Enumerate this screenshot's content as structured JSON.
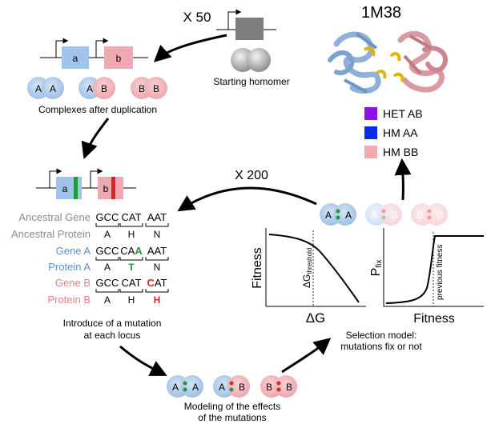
{
  "colors": {
    "blue": "#a9c8ea",
    "blue_edge": "#8fb3de",
    "pink": "#f0b2b8",
    "pink_edge": "#e39aa2",
    "green": "#1f9a3a",
    "red": "#d9262b",
    "gray_gene": "#7a7a7a",
    "text_gray": "#8b8b8b",
    "text_blue": "#5b8fd1",
    "text_pink": "#e37f8c",
    "legend_het": "#8a12e6",
    "legend_hm_aa": "#0a2ee8",
    "legend_hm_bb": "#f2aab0"
  },
  "labels": {
    "x50": "X 50",
    "x200": "X 200",
    "pdb": "1M38",
    "starting": "Starting homomer",
    "complexes": "Complexes after duplication",
    "intro1": "Introduce of a mutation",
    "intro2": "at each locus",
    "model1": "Modeling of the effects",
    "model2": "of the mutations",
    "sel1": "Selection model:",
    "sel2": "mutations fix or not"
  },
  "genes": {
    "a": "a",
    "b": "b"
  },
  "subunits": {
    "A": "A",
    "B": "B"
  },
  "legend": [
    {
      "label": "HET AB",
      "color": "#8a12e6"
    },
    {
      "label": "HM AA",
      "color": "#0a2ee8"
    },
    {
      "label": "HM BB",
      "color": "#f2aab0"
    }
  ],
  "sequence_table": {
    "rows": [
      {
        "label": "Ancestral Gene",
        "cells": [
          "GCC",
          "CAT",
          "AAT"
        ]
      },
      {
        "label": "Ancestral Protein",
        "cells": [
          "A",
          "H",
          "N"
        ]
      },
      {
        "label": "Gene A",
        "cells": [
          "GCC",
          "CA",
          "AAT"
        ],
        "mut": "A"
      },
      {
        "label": "Protein A",
        "cells": [
          "A",
          "T",
          "N"
        ]
      },
      {
        "label": "Gene B",
        "cells": [
          "GCC",
          "CAT",
          "AT"
        ],
        "mut": "C"
      },
      {
        "label": "Protein B",
        "cells": [
          "A",
          "H",
          "H"
        ]
      }
    ]
  },
  "plot1": {
    "ylabel": "Fitness",
    "xlabel": "ΔG",
    "threshold_main": "ΔG",
    "threshold_sub": "threshold"
  },
  "plot2": {
    "ylabel_main": "P",
    "ylabel_sub": "fix",
    "xlabel": "Fitness",
    "annotation": "previous fitness"
  }
}
